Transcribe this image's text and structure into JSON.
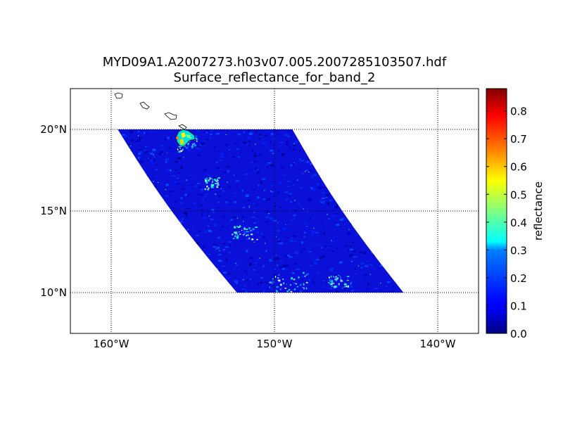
{
  "figure": {
    "title_line1": "MYD09A1.A2007273.h03v07.005.2007285103507.hdf",
    "title_line2": "Surface_reflectance_for_band_2"
  },
  "map": {
    "projection": "cylindrical",
    "lon_range": [
      -162.5,
      -137.5
    ],
    "lat_range": [
      7.5,
      22.5
    ],
    "meridians": [
      -160,
      -150,
      -140
    ],
    "parallels": [
      10,
      15,
      20
    ],
    "meridian_labels": [
      "160°W",
      "150°W",
      "140°W"
    ],
    "parallel_labels": [
      "10°N",
      "15°N",
      "20°N"
    ],
    "gridline_style": "dotted",
    "coastlines": "Hawaiian Islands (Kauai, Oahu, Molokai/Maui, Hawaii)"
  },
  "swath": {
    "corners_lonlat": [
      [
        -159.6,
        20.0
      ],
      [
        -148.9,
        20.0
      ],
      [
        -142.1,
        10.0
      ],
      [
        -152.3,
        10.0
      ]
    ],
    "background_value": 0.05,
    "notes": "mostly low reflectance over ocean; high values on Big Island of Hawaii"
  },
  "colorbar": {
    "label": "reflectance",
    "colormap": "jet",
    "range": [
      0.0,
      0.88
    ],
    "ticks": [
      0.0,
      0.1,
      0.2,
      0.3,
      0.4,
      0.5,
      0.6,
      0.7,
      0.8
    ],
    "tick_labels": [
      "0.0",
      "0.1",
      "0.2",
      "0.3",
      "0.4",
      "0.5",
      "0.6",
      "0.7",
      "0.8"
    ]
  }
}
